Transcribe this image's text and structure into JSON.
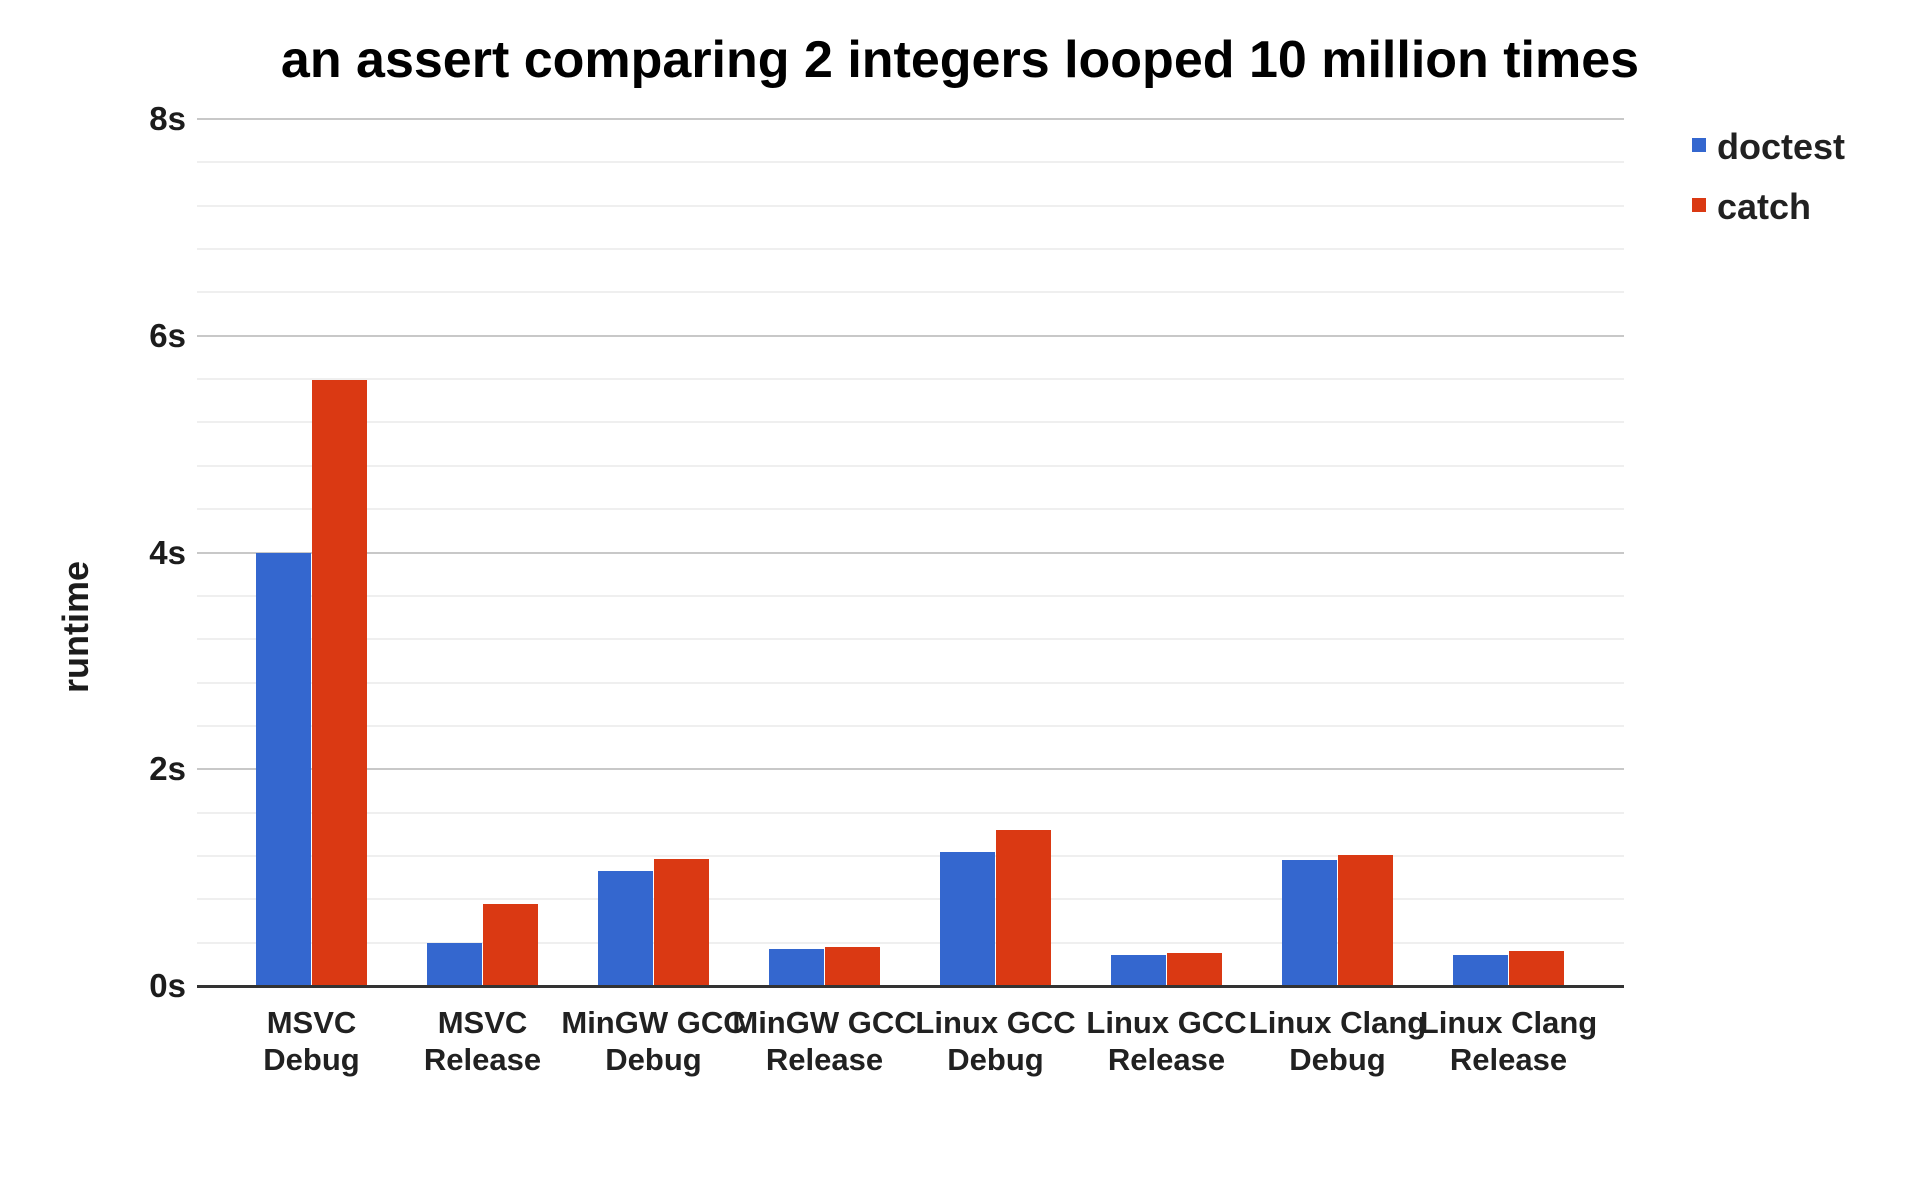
{
  "chart_data": {
    "type": "bar",
    "title": "an assert comparing 2 integers looped 10 million times",
    "ylabel": "runtime",
    "xlabel": "",
    "categories": [
      "MSVC Debug",
      "MSVC Release",
      "MinGW GCC Debug",
      "MinGW GCC Release",
      "Linux GCC Debug",
      "Linux GCC Release",
      "Linux Clang Debug",
      "Linux Clang Release"
    ],
    "category_label_lines": [
      [
        "MSVC",
        "Debug"
      ],
      [
        "MSVC",
        "Release"
      ],
      [
        "MinGW GCC",
        "Debug"
      ],
      [
        "MinGW GCC",
        "Release"
      ],
      [
        "Linux GCC",
        "Debug"
      ],
      [
        "Linux GCC",
        "Release"
      ],
      [
        "Linux Clang",
        "Debug"
      ],
      [
        "Linux Clang",
        "Release"
      ]
    ],
    "series": [
      {
        "name": "doctest",
        "color": "#3467CF",
        "values": [
          4.0,
          0.4,
          1.06,
          0.34,
          1.24,
          0.29,
          1.16,
          0.29
        ]
      },
      {
        "name": "catch",
        "color": "#DA3913",
        "values": [
          5.59,
          0.76,
          1.17,
          0.36,
          1.44,
          0.3,
          1.21,
          0.32
        ]
      }
    ],
    "y_axis": {
      "min": 0,
      "max": 8,
      "major_step": 2,
      "minor_step": 0.4,
      "tick_labels": [
        "0s",
        "2s",
        "4s",
        "6s",
        "8s"
      ],
      "unit": "s"
    },
    "legend": {
      "position": "top-right",
      "entries": [
        "doctest",
        "catch"
      ]
    },
    "grid": {
      "enabled": true,
      "major_color": "#c8c8c8",
      "minor_color": "#efefef",
      "baseline_color": "#333333"
    }
  }
}
